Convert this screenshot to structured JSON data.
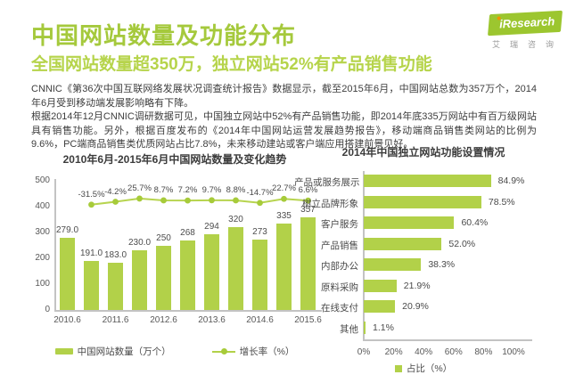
{
  "header": {
    "title": "中国网站数量及功能分布",
    "subtitle": "全国网站数量超350万，独立网站52%有产品销售功能",
    "logo": {
      "brand": "iResearch",
      "brand_cn": "艾瑞咨询"
    }
  },
  "intro": {
    "p1": "CNNIC《第36次中国互联网络发展状况调查统计报告》数据显示，截至2015年6月，中国网站总数为357万个，2014年6月受到移动端发展影响略有下降。",
    "p2": "根据2014年12月CNNIC调研数据可见，中国独立网站中52%有产品销售功能，即2014年底335万网站中有百万级网站具有销售功能。另外，根据百度发布的《2014年中国网站运营发展趋势报告》，移动端商品销售类网站的比例为9.6%，PC端商品销售类优质网站占比7.8%，未来移动建站或客户端应用搭建前景见好。"
  },
  "chart_data": [
    {
      "type": "bar",
      "title": "2010年6月-2015年6月中国网站数量及变化趋势",
      "ylim": [
        0,
        500
      ],
      "y_ticks": [
        0,
        100,
        200,
        300,
        400,
        500
      ],
      "x_tick_labels": [
        "2010.6",
        "2011.6",
        "2012.6",
        "2013.6",
        "2014.6",
        "2015.6"
      ],
      "grid": false,
      "legend_position": "bottom",
      "series": [
        {
          "name": "中国网站数量（万个）",
          "type": "bar",
          "values": [
            279.0,
            191.0,
            183.0,
            230.0,
            250,
            268,
            294,
            320,
            273,
            335,
            357
          ],
          "value_labels": [
            "279.0",
            "191.0",
            "183.0",
            "230.0",
            "250",
            "268",
            "294",
            "320",
            "273",
            "335",
            "357"
          ]
        },
        {
          "name": "增长率（%）",
          "type": "line",
          "starts_at_bar_index": 1,
          "values": [
            -31.5,
            -4.2,
            25.7,
            8.7,
            7.2,
            9.7,
            8.8,
            -14.7,
            22.7,
            6.6
          ],
          "value_labels": [
            "-31.5%",
            "-4.2%",
            "25.7%",
            "8.7%",
            "7.2%",
            "9.7%",
            "8.8%",
            "-14.7%",
            "22.7%",
            "6.6%"
          ]
        }
      ]
    },
    {
      "type": "bar",
      "orientation": "horizontal",
      "title": "2014年中国独立网站功能设置情况",
      "categories": [
        "产品或服务展示",
        "树立品牌形象",
        "客户服务",
        "产品销售",
        "内部办公",
        "原料采购",
        "在线支付",
        "其他"
      ],
      "values": [
        84.9,
        78.5,
        60.4,
        52.0,
        38.3,
        21.9,
        20.9,
        1.1
      ],
      "value_labels": [
        "84.9%",
        "78.5%",
        "60.4%",
        "52.0%",
        "38.3%",
        "21.9%",
        "20.9%",
        "1.1%"
      ],
      "xlim": [
        0,
        100
      ],
      "x_tick_labels": [
        "0%",
        "20%",
        "40%",
        "60%",
        "80%",
        "100%"
      ],
      "grid": false,
      "legend": "占比（%）",
      "legend_position": "bottom"
    }
  ],
  "colors": {
    "accent_green": "#a5c93c",
    "subtitle_green": "#b6d44b",
    "bar_green": "#b2d149",
    "line_green": "#b7d44f",
    "dot_green": "#a7cb3a",
    "logo_green": "#9cc62f",
    "logo_dot_orange": "#f29200",
    "text_dark": "#3d3d3d",
    "axis_gray": "#c3c3c3"
  }
}
